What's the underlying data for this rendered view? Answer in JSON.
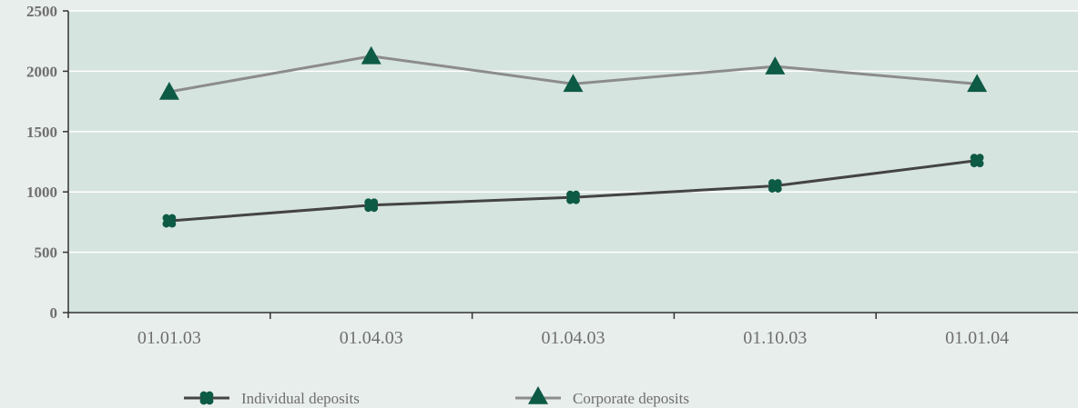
{
  "chart_data": {
    "type": "line",
    "title": "",
    "xlabel": "",
    "ylabel": "",
    "categories": [
      "01.01.03",
      "01.04.03",
      "01.04.03",
      "01.10.03",
      "01.01.04"
    ],
    "y_ticks": [
      "0",
      "500",
      "1000",
      "1500",
      "2000",
      "2500"
    ],
    "ylim": [
      0,
      2500
    ],
    "grid": true,
    "legend_position": "bottom",
    "series": [
      {
        "name": "Individual deposits",
        "values": [
          760,
          890,
          955,
          1050,
          1260
        ],
        "line_color": "#444444",
        "marker": "clover",
        "marker_color": "#0d5a45"
      },
      {
        "name": "Corporate deposits",
        "values": [
          1830,
          2125,
          1895,
          2040,
          1895
        ],
        "line_color": "#8c8c8c",
        "marker": "triangle",
        "marker_color": "#0d5a45"
      }
    ],
    "colors": {
      "plot_background": "#d6e4df",
      "page_background": "#e8eeeb",
      "grid": "#ffffff",
      "axis": "#333333"
    }
  }
}
